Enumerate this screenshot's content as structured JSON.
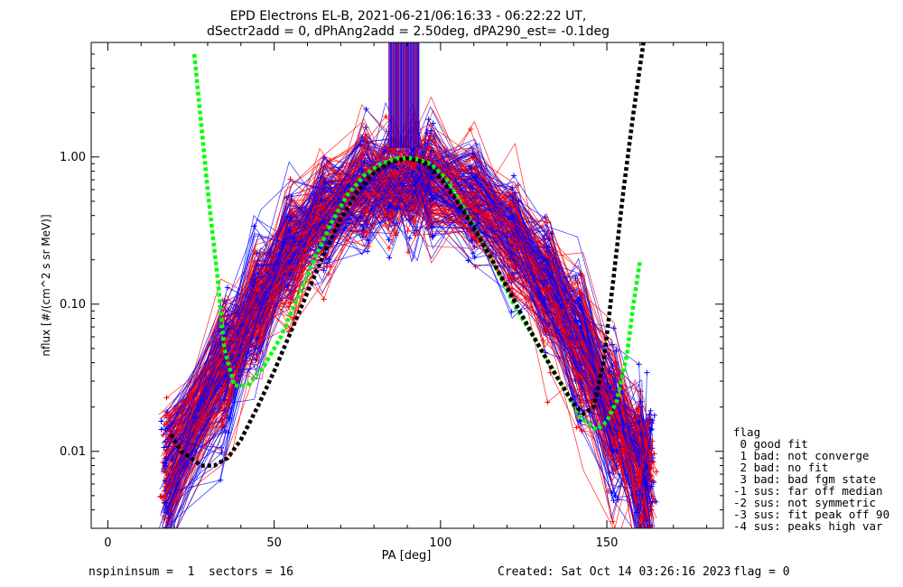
{
  "chart_data": {
    "type": "line",
    "title_lines": [
      "EPD Electrons EL-B, 2021-06-21/06:16:33 - 06:22:22 UT,",
      "dSectr2add = 0, dPhAng2add = 2.50deg, dPA290_est=  -0.1deg"
    ],
    "xlabel": "PA [deg]",
    "ylabel": "nflux [#/(cm^2 s sr MeV)]",
    "xlim": [
      -5,
      185
    ],
    "ylim": [
      0.003,
      6.0
    ],
    "y_scale": "log",
    "x_ticks": [
      0,
      50,
      100,
      150
    ],
    "y_ticks": [
      0.01,
      0.1,
      1.0
    ],
    "y_tick_labels": [
      "0.01",
      "0.10",
      "1.00"
    ],
    "series": [
      {
        "color": "#ff0000",
        "marker": "+"
      },
      {
        "color": "#0000ff",
        "marker": "+"
      },
      {
        "color": "#00ff00",
        "style": "dashed",
        "x": [
          26,
          30,
          33,
          35,
          38,
          42,
          47,
          52,
          57,
          62,
          67,
          72,
          77,
          82,
          87,
          92,
          97,
          102,
          107,
          112,
          117,
          122,
          127,
          132,
          137,
          142,
          147,
          150,
          153,
          156,
          158,
          160
        ],
        "y": [
          5.0,
          0.6,
          0.15,
          0.05,
          0.028,
          0.028,
          0.038,
          0.06,
          0.11,
          0.2,
          0.35,
          0.55,
          0.75,
          0.9,
          0.98,
          0.98,
          0.9,
          0.7,
          0.45,
          0.28,
          0.17,
          0.1,
          0.065,
          0.042,
          0.027,
          0.017,
          0.014,
          0.016,
          0.022,
          0.045,
          0.1,
          0.2
        ]
      },
      {
        "color": "#000000",
        "style": "dashed",
        "x": [
          19,
          22,
          25,
          28,
          32,
          36,
          40,
          45,
          50,
          55,
          60,
          65,
          70,
          75,
          80,
          85,
          90,
          95,
          100,
          105,
          110,
          115,
          120,
          125,
          130,
          135,
          140,
          143,
          146,
          149,
          152,
          155,
          158,
          161
        ],
        "y": [
          0.013,
          0.01,
          0.009,
          0.008,
          0.008,
          0.009,
          0.012,
          0.02,
          0.035,
          0.065,
          0.12,
          0.22,
          0.38,
          0.58,
          0.78,
          0.92,
          0.98,
          0.92,
          0.72,
          0.5,
          0.33,
          0.21,
          0.13,
          0.08,
          0.05,
          0.032,
          0.021,
          0.018,
          0.02,
          0.04,
          0.15,
          0.6,
          2.0,
          6.0
        ]
      }
    ]
  },
  "legend": {
    "items": [
      "flag",
      " 0 good fit",
      " 1 bad: not converge",
      " 2 bad: no fit",
      " 3 bad: bad fgm state",
      "-1 sus: far off median",
      "-2 sus: not symmetric",
      "-3 sus: fit peak off 90",
      "-4 sus: peaks high var"
    ]
  },
  "footer": {
    "left": "nspininsum =  1  sectors = 16",
    "center": "Created: Sat Oct 14 03:26:16 2023",
    "right": "flag = 0"
  },
  "colors": {
    "fit_green": "#00ff00",
    "fit_black": "#000000",
    "data_red": "#ff0000",
    "data_blue": "#0000ff"
  }
}
